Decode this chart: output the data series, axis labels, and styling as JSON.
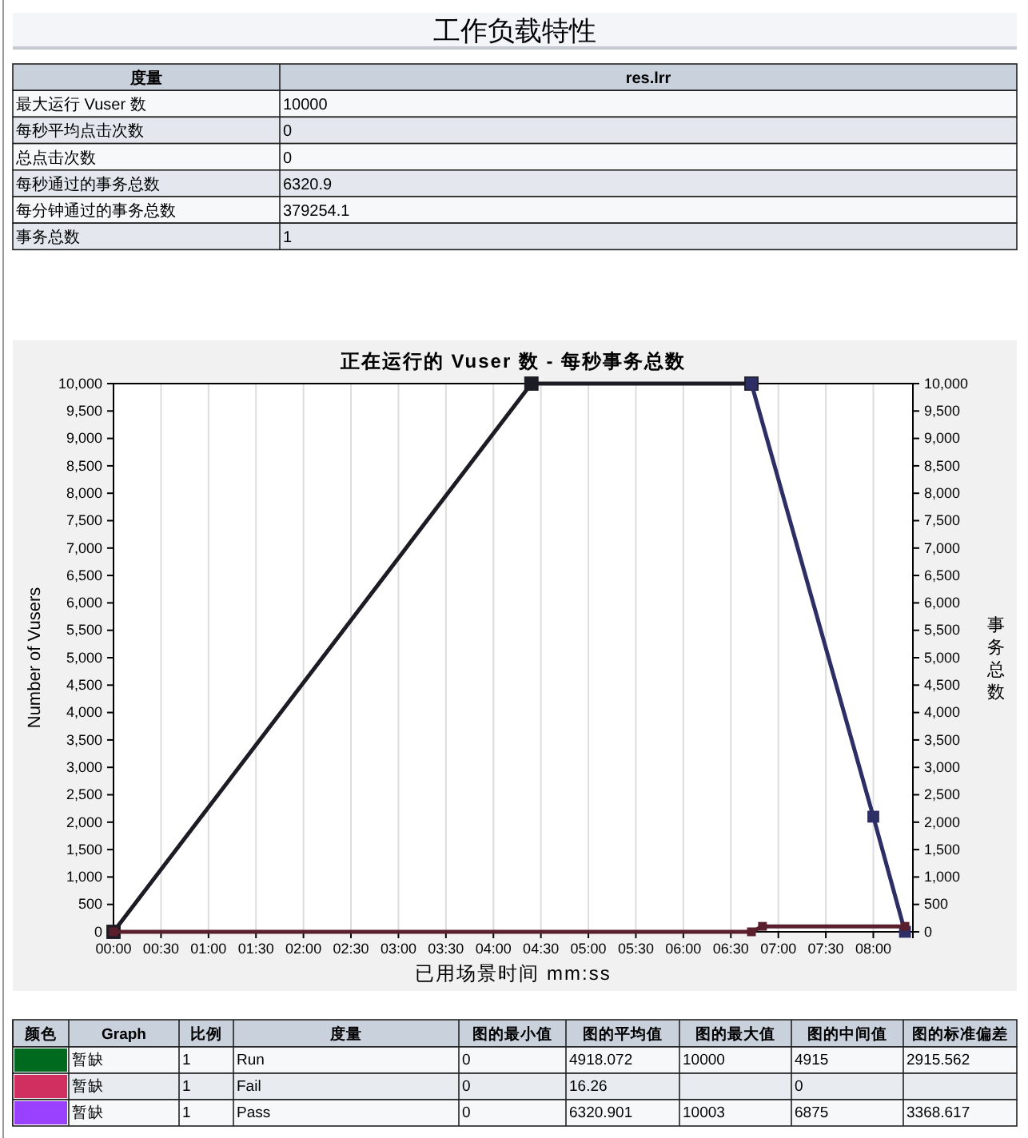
{
  "chart_data": [
    {
      "type": "other",
      "title": "工作负载特性",
      "annotations": [
        "度量",
        "res.lrr",
        "最大运行 Vuser 数",
        "10000",
        "每秒平均点击次数",
        "0",
        "总点击次数",
        "0",
        "每秒通过的事务总数",
        "6320.9",
        "每分钟通过的事务总数",
        "379254.1",
        "事务总数",
        "1"
      ]
    },
    {
      "type": "line",
      "title": "正在运行的 Vuser 数 - 每秒事务总数",
      "xlabel": "已用场景时间 mm:ss",
      "ylabel": "Number of Vusers",
      "y2label": "事务总数",
      "xlim": [
        0,
        505
      ],
      "ylim": [
        0,
        10000
      ],
      "y2lim": [
        0,
        10000
      ],
      "xticks": [
        {
          "value": 0,
          "label": "00:00"
        },
        {
          "value": 30,
          "label": "00:30"
        },
        {
          "value": 60,
          "label": "01:00"
        },
        {
          "value": 90,
          "label": "01:30"
        },
        {
          "value": 120,
          "label": "02:00"
        },
        {
          "value": 150,
          "label": "02:30"
        },
        {
          "value": 180,
          "label": "03:00"
        },
        {
          "value": 210,
          "label": "03:30"
        },
        {
          "value": 240,
          "label": "04:00"
        },
        {
          "value": 270,
          "label": "04:30"
        },
        {
          "value": 300,
          "label": "05:00"
        },
        {
          "value": 330,
          "label": "05:30"
        },
        {
          "value": 360,
          "label": "06:00"
        },
        {
          "value": 390,
          "label": "06:30"
        },
        {
          "value": 420,
          "label": "07:00"
        },
        {
          "value": 450,
          "label": "07:30"
        },
        {
          "value": 480,
          "label": "08:00"
        }
      ],
      "yticks": [
        0,
        500,
        {
          "value": 1000,
          "label": "1,000"
        },
        {
          "value": 1500,
          "label": "1,500"
        },
        {
          "value": 2000,
          "label": "2,000"
        },
        {
          "value": 2500,
          "label": "2,500"
        },
        {
          "value": 3000,
          "label": "3,000"
        },
        {
          "value": 3500,
          "label": "3,500"
        },
        {
          "value": 4000,
          "label": "4,000"
        },
        {
          "value": 4500,
          "label": "4,500"
        },
        {
          "value": 5000,
          "label": "5,000"
        },
        {
          "value": 5500,
          "label": "5,500"
        },
        {
          "value": 6000,
          "label": "6,000"
        },
        {
          "value": 6500,
          "label": "6,500"
        },
        {
          "value": 7000,
          "label": "7,000"
        },
        {
          "value": 7500,
          "label": "7,500"
        },
        {
          "value": 8000,
          "label": "8,000"
        },
        {
          "value": 8500,
          "label": "8,500"
        },
        {
          "value": 9000,
          "label": "9,000"
        },
        {
          "value": 9500,
          "label": "9,500"
        },
        {
          "value": 10000,
          "label": "10,000"
        }
      ],
      "y2ticks": [
        0,
        500,
        {
          "value": 1000,
          "label": "1,000"
        },
        {
          "value": 1500,
          "label": "1,500"
        },
        {
          "value": 2000,
          "label": "2,000"
        },
        {
          "value": 2500,
          "label": "2,500"
        },
        {
          "value": 3000,
          "label": "3,000"
        },
        {
          "value": 3500,
          "label": "3,500"
        },
        {
          "value": 4000,
          "label": "4,000"
        },
        {
          "value": 4500,
          "label": "4,500"
        },
        {
          "value": 5000,
          "label": "5,000"
        },
        {
          "value": 5500,
          "label": "5,500"
        },
        {
          "value": 6000,
          "label": "6,000"
        },
        {
          "value": 6500,
          "label": "6,500"
        },
        {
          "value": 7000,
          "label": "7,000"
        },
        {
          "value": 7500,
          "label": "7,500"
        },
        {
          "value": 8000,
          "label": "8,000"
        },
        {
          "value": 8500,
          "label": "8,500"
        },
        {
          "value": 9000,
          "label": "9,000"
        },
        {
          "value": 9500,
          "label": "9,500"
        },
        {
          "value": 10000,
          "label": "10,000"
        }
      ],
      "grid": "x",
      "marker": "square",
      "series": [
        {
          "color": "#1c1c24",
          "x": [
            0,
            264,
            403
          ],
          "values": [
            0,
            10000,
            10000
          ]
        },
        {
          "color": "#2e2e66",
          "x": [
            403,
            480,
            500
          ],
          "values": [
            10000,
            2100,
            0
          ]
        },
        {
          "color": "#5a1f2c",
          "x": [
            0,
            403,
            410,
            500
          ],
          "values": [
            0,
            0,
            100,
            100
          ]
        }
      ]
    },
    {
      "type": "other",
      "colors": [
        "#006a1e",
        "#d03060",
        "#9a40ff"
      ],
      "annotations": [
        "颜色",
        "Graph",
        "比例",
        "度量",
        "图的最小值",
        "图的平均值",
        "图的最大值",
        "图的中间值",
        "图的标准偏差",
        "暂缺",
        "1",
        "Run",
        "0",
        "4918.072",
        "10000",
        "4915",
        "2915.562",
        "暂缺",
        "1",
        "Fail",
        "0",
        "16.26",
        null,
        "0",
        null,
        "暂缺",
        "1",
        "Pass",
        "0",
        "6320.901",
        "10003",
        "6875",
        "3368.617"
      ]
    }
  ]
}
